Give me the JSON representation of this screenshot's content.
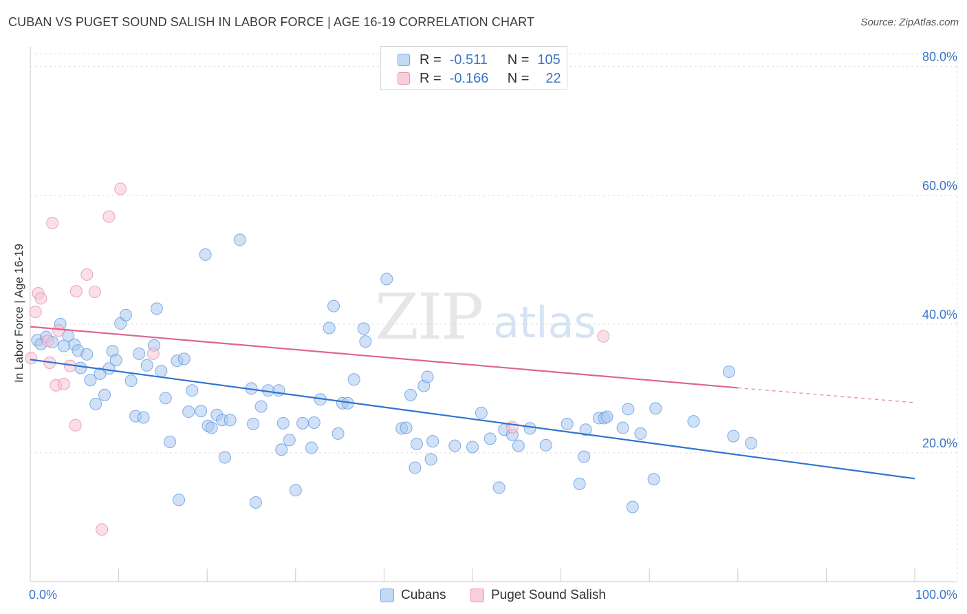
{
  "title": "CUBAN VS PUGET SOUND SALISH IN LABOR FORCE | AGE 16-19 CORRELATION CHART",
  "source": "Source: ZipAtlas.com",
  "watermark": {
    "zip": "ZIP",
    "atlas": "atlas"
  },
  "legend": {
    "r_label": "R =",
    "n_label": "N =",
    "rows": [
      {
        "r": "-0.511",
        "n": "105",
        "color": "#9ec3ef"
      },
      {
        "r": "-0.166",
        "n": "22",
        "color": "#f4b6c8"
      }
    ]
  },
  "bottom_legend": [
    {
      "name": "Cubans",
      "color": "#9ec3ef"
    },
    {
      "name": "Puget Sound Salish",
      "color": "#f4b6c8"
    }
  ],
  "chart_data": {
    "type": "scatter",
    "title": "CUBAN VS PUGET SOUND SALISH IN LABOR FORCE | AGE 16-19 CORRELATION CHART",
    "ylabel": "In Labor Force | Age 16-19",
    "xlabel": "",
    "xlim": [
      0,
      100
    ],
    "ylim": [
      0,
      82
    ],
    "x_tick_labels": [
      "0.0%",
      "100.0%"
    ],
    "y_tick_labels": [
      "20.0%",
      "40.0%",
      "60.0%",
      "80.0%"
    ],
    "y_ticks": [
      20,
      40,
      60,
      80
    ],
    "series": [
      {
        "name": "Cubans",
        "color": "#5b93dc",
        "fill": "#a9c9f0",
        "trend": {
          "x0": 0,
          "y0": 34.5,
          "x1": 100,
          "y1": 16.0
        },
        "points": [
          [
            0.8,
            37.5
          ],
          [
            1.2,
            36.9
          ],
          [
            1.8,
            38.0
          ],
          [
            2.5,
            37.2
          ],
          [
            3.4,
            40.0
          ],
          [
            3.8,
            36.6
          ],
          [
            4.3,
            38.2
          ],
          [
            5.0,
            36.8
          ],
          [
            5.4,
            35.9
          ],
          [
            5.7,
            33.2
          ],
          [
            6.4,
            35.3
          ],
          [
            6.8,
            31.3
          ],
          [
            7.4,
            27.6
          ],
          [
            7.9,
            32.3
          ],
          [
            8.4,
            29.0
          ],
          [
            8.9,
            33.1
          ],
          [
            9.3,
            35.8
          ],
          [
            9.7,
            34.4
          ],
          [
            10.2,
            40.1
          ],
          [
            10.8,
            41.4
          ],
          [
            11.4,
            31.2
          ],
          [
            11.9,
            25.7
          ],
          [
            12.3,
            35.4
          ],
          [
            12.8,
            25.5
          ],
          [
            13.2,
            33.6
          ],
          [
            14.0,
            36.7
          ],
          [
            14.3,
            42.4
          ],
          [
            14.8,
            32.7
          ],
          [
            15.3,
            28.5
          ],
          [
            15.8,
            21.7
          ],
          [
            16.6,
            34.3
          ],
          [
            16.8,
            12.7
          ],
          [
            17.4,
            34.6
          ],
          [
            17.9,
            26.4
          ],
          [
            18.3,
            29.7
          ],
          [
            19.3,
            26.5
          ],
          [
            19.8,
            50.8
          ],
          [
            20.1,
            24.2
          ],
          [
            20.5,
            23.9
          ],
          [
            21.1,
            25.9
          ],
          [
            21.7,
            25.1
          ],
          [
            22.0,
            19.3
          ],
          [
            22.6,
            25.1
          ],
          [
            23.7,
            53.1
          ],
          [
            25.0,
            30.0
          ],
          [
            25.2,
            24.5
          ],
          [
            25.5,
            12.3
          ],
          [
            26.1,
            27.2
          ],
          [
            26.9,
            29.7
          ],
          [
            28.1,
            29.7
          ],
          [
            28.4,
            20.5
          ],
          [
            28.6,
            24.6
          ],
          [
            29.3,
            22.0
          ],
          [
            30.0,
            14.2
          ],
          [
            30.8,
            24.6
          ],
          [
            31.8,
            20.8
          ],
          [
            32.1,
            24.7
          ],
          [
            32.8,
            28.3
          ],
          [
            33.8,
            39.4
          ],
          [
            34.3,
            42.8
          ],
          [
            34.8,
            23.0
          ],
          [
            35.3,
            27.7
          ],
          [
            35.9,
            27.7
          ],
          [
            36.6,
            31.4
          ],
          [
            37.7,
            39.3
          ],
          [
            37.9,
            37.3
          ],
          [
            40.3,
            47.0
          ],
          [
            42.0,
            23.8
          ],
          [
            42.5,
            23.9
          ],
          [
            43.0,
            29.0
          ],
          [
            43.5,
            17.7
          ],
          [
            43.7,
            21.4
          ],
          [
            44.5,
            30.4
          ],
          [
            44.9,
            31.8
          ],
          [
            45.3,
            19.0
          ],
          [
            45.5,
            21.8
          ],
          [
            48.0,
            21.1
          ],
          [
            50.0,
            20.9
          ],
          [
            51.0,
            26.2
          ],
          [
            52.0,
            22.2
          ],
          [
            53.0,
            14.6
          ],
          [
            53.6,
            23.6
          ],
          [
            54.5,
            22.8
          ],
          [
            55.2,
            21.1
          ],
          [
            56.5,
            23.8
          ],
          [
            58.3,
            21.2
          ],
          [
            60.7,
            24.5
          ],
          [
            62.1,
            15.2
          ],
          [
            62.6,
            19.4
          ],
          [
            62.8,
            23.6
          ],
          [
            64.3,
            25.4
          ],
          [
            64.9,
            25.4
          ],
          [
            65.2,
            25.6
          ],
          [
            67.0,
            23.9
          ],
          [
            67.6,
            26.8
          ],
          [
            68.1,
            11.6
          ],
          [
            69.0,
            23.0
          ],
          [
            70.5,
            15.9
          ],
          [
            70.7,
            26.9
          ],
          [
            75.0,
            24.9
          ],
          [
            79.0,
            32.6
          ],
          [
            79.5,
            22.6
          ],
          [
            81.5,
            21.5
          ]
        ]
      },
      {
        "name": "Puget Sound Salish",
        "color": "#e48aa6",
        "fill": "#f6c4d3",
        "trend": {
          "x0": 0,
          "y0": 39.6,
          "x1": 80,
          "y1": 30.1,
          "dash_to_x": 100,
          "dash_to_y": 27.8
        },
        "points": [
          [
            0.1,
            34.7
          ],
          [
            0.6,
            41.9
          ],
          [
            0.9,
            44.8
          ],
          [
            1.2,
            44.0
          ],
          [
            2.0,
            37.4
          ],
          [
            2.2,
            34.0
          ],
          [
            2.5,
            55.7
          ],
          [
            2.9,
            30.5
          ],
          [
            3.2,
            39.0
          ],
          [
            3.8,
            30.7
          ],
          [
            4.5,
            33.5
          ],
          [
            5.1,
            24.3
          ],
          [
            5.2,
            45.1
          ],
          [
            6.4,
            47.7
          ],
          [
            7.3,
            45.0
          ],
          [
            8.1,
            8.1
          ],
          [
            8.9,
            56.7
          ],
          [
            10.2,
            61.0
          ],
          [
            13.9,
            35.4
          ],
          [
            54.5,
            24.0
          ],
          [
            64.8,
            38.1
          ]
        ]
      }
    ]
  }
}
